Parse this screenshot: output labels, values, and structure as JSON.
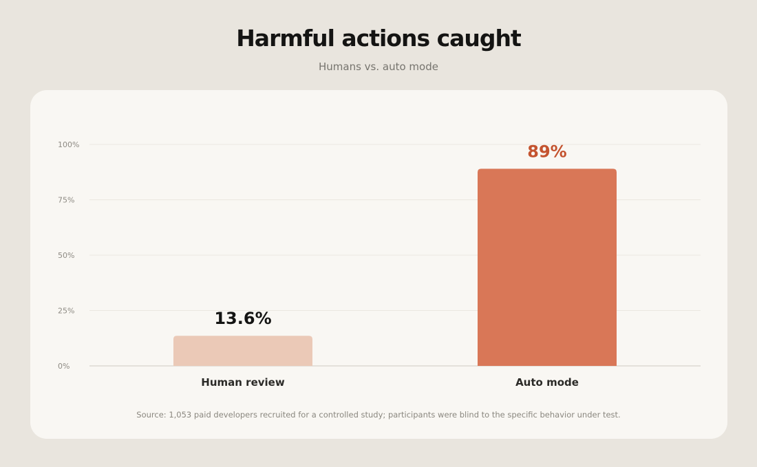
{
  "header": {
    "title": "Harmful actions caught",
    "subtitle": "Humans vs. auto mode"
  },
  "footer": {
    "source": "Source: 1,053 paid developers recruited for a controlled study; participants were blind to the specific behavior under test."
  },
  "colors": {
    "page_background": "#e9e5de",
    "card_background": "#f9f7f3",
    "human_bar": "#ebc9b7",
    "auto_bar": "#d97757",
    "auto_label": "#c4532f",
    "text_dark": "#141413"
  },
  "chart_data": {
    "type": "bar",
    "title": "Harmful actions caught",
    "subtitle": "Humans vs. auto mode",
    "categories": [
      "Human review",
      "Auto mode"
    ],
    "values": [
      13.6,
      89
    ],
    "value_labels": [
      "13.6%",
      "89%"
    ],
    "ylim": [
      0,
      100
    ],
    "yticks": [
      0,
      25,
      50,
      75,
      100
    ],
    "ytick_labels": [
      "0%",
      "25%",
      "50%",
      "75%",
      "100%"
    ],
    "grid": true,
    "legend": "none"
  }
}
